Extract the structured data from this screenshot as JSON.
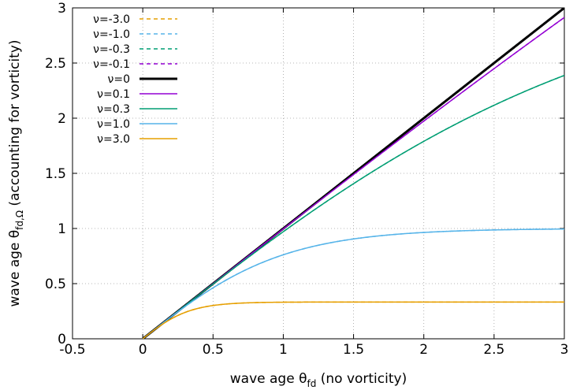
{
  "chart_data": {
    "type": "line",
    "title": "",
    "xlabel": "wave age θ",
    "xlabel_sub": "fd",
    "xlabel_suffix": " (no vorticity)",
    "ylabel": "wave age θ",
    "ylabel_sub": "fd,Ω",
    "ylabel_suffix": " (accounting for vorticity)",
    "xlim": [
      -0.5,
      3
    ],
    "ylim": [
      0,
      3
    ],
    "xticks": [
      "-0.5",
      "0",
      "0.5",
      "1",
      "1.5",
      "2",
      "2.5",
      "3"
    ],
    "yticks": [
      "0",
      "0.5",
      "1",
      "1.5",
      "2",
      "2.5",
      "3"
    ],
    "grid": true,
    "legend_position": "top-left",
    "series": [
      {
        "name": "ν=-3.0",
        "color": "#e69f00",
        "dash": true,
        "nu": -3.0
      },
      {
        "name": "ν=-1.0",
        "color": "#56b4e9",
        "dash": true,
        "nu": -1.0
      },
      {
        "name": "ν=-0.3",
        "color": "#009e73",
        "dash": true,
        "nu": -0.3
      },
      {
        "name": "ν=-0.1",
        "color": "#9400d3",
        "dash": true,
        "nu": -0.1
      },
      {
        "name": "ν=0",
        "color": "#000000",
        "dash": false,
        "bold": true,
        "nu": 0
      },
      {
        "name": "ν=0.1",
        "color": "#9400d3",
        "dash": false,
        "nu": 0.1
      },
      {
        "name": "ν=0.3",
        "color": "#009e73",
        "dash": false,
        "nu": 0.3
      },
      {
        "name": "ν=1.0",
        "color": "#56b4e9",
        "dash": false,
        "nu": 1.0
      },
      {
        "name": "ν=3.0",
        "color": "#e69f00",
        "dash": false,
        "nu": 3.0
      }
    ]
  }
}
